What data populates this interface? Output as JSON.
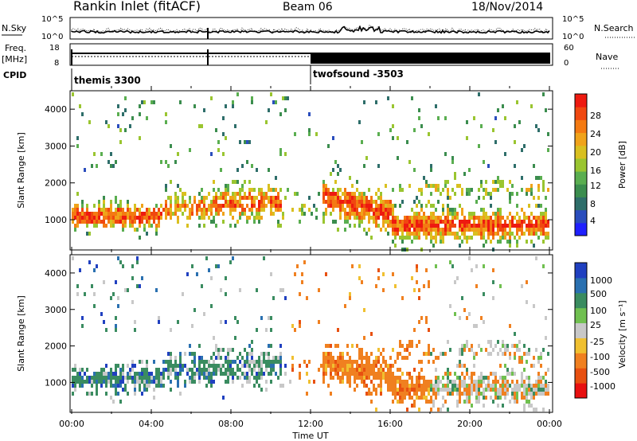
{
  "header": {
    "station": "Rankin Inlet (fitACF)",
    "beam": "Beam 06",
    "date": "18/Nov/2014"
  },
  "noise_panel": {
    "left_label": "N.Sky",
    "right_label": "N.Search",
    "left_ticks": [
      "10^5",
      "10^0"
    ],
    "right_ticks": [
      "10^5",
      "10^0"
    ]
  },
  "freq_panel": {
    "left_label_1": "Freq.",
    "left_label_2": "[MHz]",
    "right_label": "Nave",
    "left_ticks": [
      "18",
      "8"
    ],
    "right_ticks": [
      "60",
      "0"
    ]
  },
  "cpid_panel": {
    "label": "CPID",
    "segments": [
      {
        "start_h": 0,
        "end_h": 12,
        "name": "themis 3300"
      },
      {
        "start_h": 12,
        "end_h": 24,
        "name": "twofsound -3503"
      }
    ]
  },
  "range_axis": {
    "label": "Slant Range [km]",
    "ticks": [
      "1000",
      "2000",
      "3000",
      "4000"
    ],
    "ylim": [
      180,
      4500
    ]
  },
  "time_axis": {
    "label": "Time UT",
    "ticks": [
      "00:00",
      "04:00",
      "08:00",
      "12:00",
      "16:00",
      "20:00",
      "00:00"
    ]
  },
  "power_scale": {
    "label": "Power [dB]",
    "ticks": [
      "28",
      "24",
      "20",
      "16",
      "12",
      "8",
      "4"
    ],
    "colors": [
      "#1f20ff",
      "#2a4dbd",
      "#2e6e6a",
      "#3b8d4e",
      "#5aae50",
      "#9ac530",
      "#d9c020",
      "#f0a31a",
      "#f47a12",
      "#f04810",
      "#ee1a10"
    ]
  },
  "velocity_scale": {
    "label": "Velocity [m s⁻¹]",
    "ticks": [
      "1000",
      "500",
      "100",
      "25",
      "-25",
      "-100",
      "-500",
      "-1000"
    ],
    "colors": [
      "#2040c0",
      "#2a70b0",
      "#3a8c60",
      "#70c050",
      "#c8c8c8",
      "#f0c030",
      "#f08020",
      "#e85010",
      "#e81010"
    ]
  },
  "chart_data": [
    {
      "type": "heatmap",
      "name": "power",
      "xlabel": "Time UT",
      "ylabel": "Slant Range [km]",
      "ylim": [
        180,
        4500
      ],
      "xlim_hours": [
        0,
        24
      ],
      "colorbar": "Power [dB]",
      "clim": [
        0,
        30
      ]
    },
    {
      "type": "heatmap",
      "name": "velocity",
      "xlabel": "Time UT",
      "ylabel": "Slant Range [km]",
      "ylim": [
        180,
        4500
      ],
      "xlim_hours": [
        0,
        24
      ],
      "colorbar": "Velocity [m s⁻¹]",
      "clim": [
        -1000,
        1000
      ]
    },
    {
      "type": "line",
      "name": "noise-sky",
      "ylim": [
        1,
        100000
      ],
      "log_scale": true
    },
    {
      "type": "line",
      "name": "frequency",
      "ylim": [
        8,
        18
      ]
    }
  ]
}
